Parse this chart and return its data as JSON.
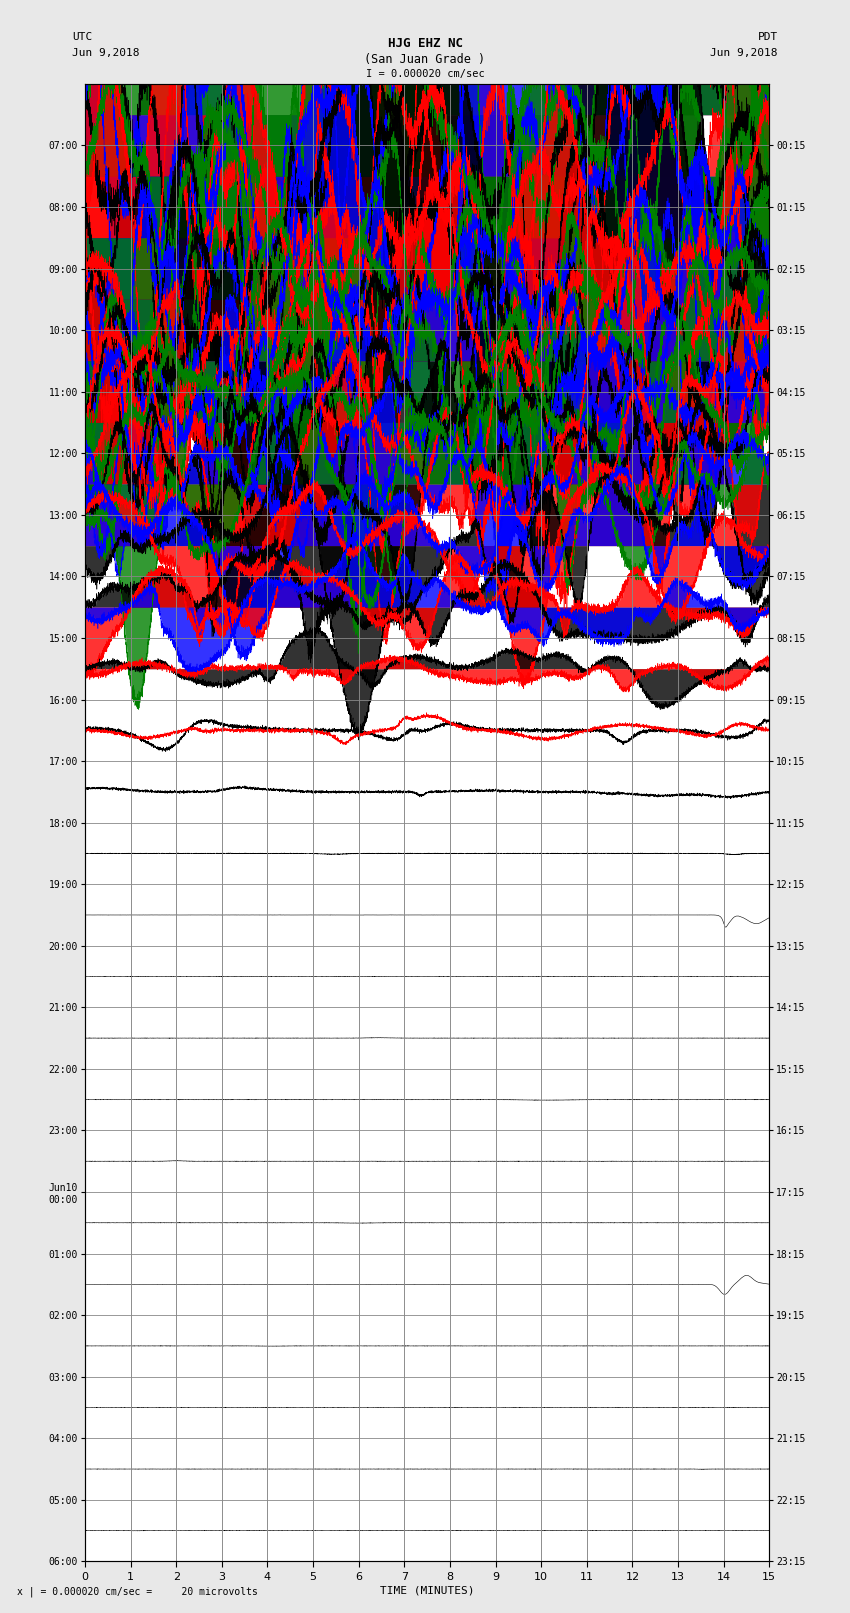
{
  "title_line1": "HJG EHZ NC",
  "title_line2": "(San Juan Grade )",
  "scale_label": "I = 0.000020 cm/sec",
  "left_label": "UTC",
  "left_date": "Jun 9,2018",
  "right_label": "PDT",
  "right_date": "Jun 9,2018",
  "bottom_label": "TIME (MINUTES)",
  "bottom_note": "x | = 0.000020 cm/sec =     20 microvolts",
  "num_rows": 24,
  "minutes_per_row": 15,
  "x_ticks": [
    0,
    1,
    2,
    3,
    4,
    5,
    6,
    7,
    8,
    9,
    10,
    11,
    12,
    13,
    14,
    15
  ],
  "left_ytick_labels": [
    "07:00",
    "08:00",
    "09:00",
    "10:00",
    "11:00",
    "12:00",
    "13:00",
    "14:00",
    "15:00",
    "16:00",
    "17:00",
    "18:00",
    "19:00",
    "20:00",
    "21:00",
    "22:00",
    "23:00",
    "Jun10\n00:00",
    "01:00",
    "02:00",
    "03:00",
    "04:00",
    "05:00",
    "06:00"
  ],
  "right_ytick_labels": [
    "00:15",
    "01:15",
    "02:15",
    "03:15",
    "04:15",
    "05:15",
    "06:15",
    "07:15",
    "08:15",
    "09:15",
    "10:15",
    "11:15",
    "12:15",
    "13:15",
    "14:15",
    "15:15",
    "16:15",
    "17:15",
    "18:15",
    "19:15",
    "20:15",
    "21:15",
    "22:15",
    "23:15"
  ],
  "bg_color": "#e8e8e8",
  "plot_bg": "#ffffff",
  "grid_color": "#888888",
  "seismo_colors": [
    "black",
    "red",
    "blue",
    "green"
  ],
  "seed": 42
}
